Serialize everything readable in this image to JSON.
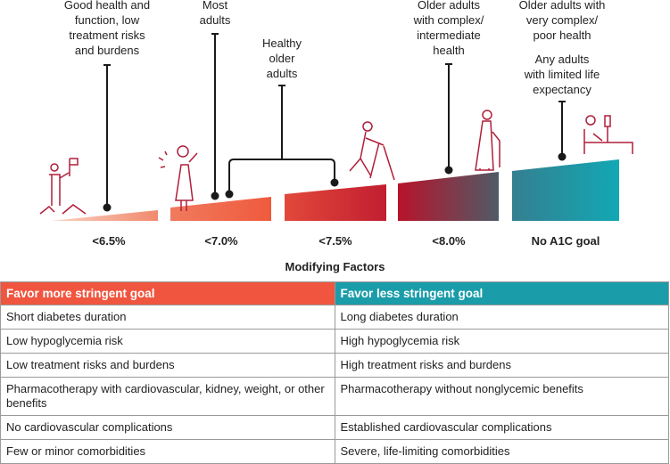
{
  "categories": [
    {
      "goal": "<6.5%",
      "label": "Good health and\nfunction, low\ntreatment risks\nand burdens",
      "icon": "climber-flag-icon"
    },
    {
      "goal": "<7.0%",
      "label": "Most\nadults",
      "icon": "waving-woman-icon"
    },
    {
      "goal": "<7.5%",
      "label": "Healthy\nolder\nadults",
      "icon": "walker-poles-icon"
    },
    {
      "goal": "<8.0%",
      "label": "Older adults\nwith complex/\nintermediate\nhealth",
      "icon": "elderly-cane-icon"
    },
    {
      "goal": "No A1C goal",
      "label": "Older adults with\nvery complex/\npoor health",
      "label2": "Any adults\nwith limited life\nexpectancy",
      "icon": "hospital-bed-icon"
    }
  ],
  "modifying_factors": {
    "title": "Modifying Factors",
    "left_header": "Favor more stringent goal",
    "right_header": "Favor less stringent goal",
    "rows": [
      [
        "Short diabetes duration",
        "Long diabetes duration"
      ],
      [
        "Low hypoglycemia risk",
        "High hypoglycemia risk"
      ],
      [
        "Low treatment risks and burdens",
        "High treatment risks and burdens"
      ],
      [
        "Pharmacotherapy with cardiovascular, kidney, weight, or other benefits",
        "Pharmacotherapy without nonglycemic benefits"
      ],
      [
        "No cardiovascular complications",
        "Established cardiovascular complications"
      ],
      [
        "Few or minor comorbidities",
        "Severe, life-limiting comorbidities"
      ]
    ]
  },
  "colors": {
    "stringent": "#f0553f",
    "less_stringent": "#1a9ca9",
    "icon": "#b01e3a"
  }
}
